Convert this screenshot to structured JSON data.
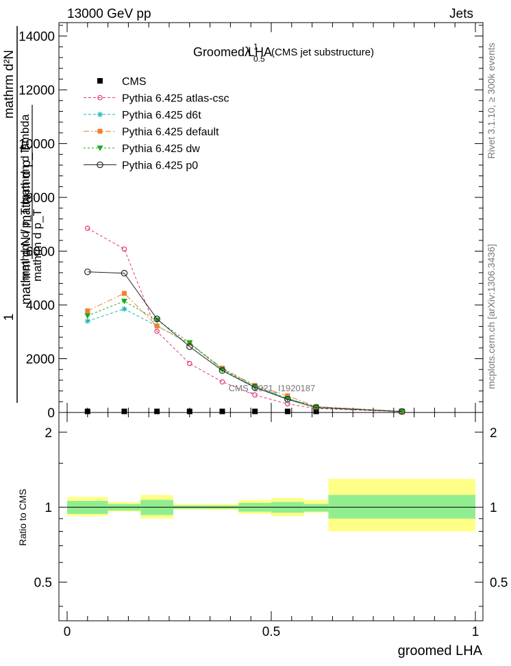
{
  "header": {
    "left": "13000 GeV pp",
    "right": "Jets"
  },
  "side_labels": {
    "rivet": "Rivet 3.1.10, ≥ 300k events",
    "mcplots": "mcplots.cern.ch [arXiv:1306.3436]"
  },
  "watermark": "CMS_2021_I1920187",
  "chart_data": [
    {
      "type": "line",
      "title_main": "Groomed LHA",
      "title_lambda": "λ",
      "title_sup": "1",
      "title_sub": "0.5",
      "title_suffix": "(CMS jet substructure)",
      "ylabel_top": "1",
      "ylabel_num1": "mathrm d²N",
      "ylabel_num2": "mathrm d p_T mathrm d lambda",
      "ylabel_den1": "mathrm d N / mathrm d p_T",
      "ylabel_den2": "mathrm d p_T",
      "xlim": [
        0,
        1
      ],
      "ylim": [
        0,
        14500
      ],
      "y_ticks": [
        0,
        2000,
        4000,
        6000,
        8000,
        10000,
        12000,
        14000
      ],
      "y_tick_labels": [
        "0",
        "2000",
        "4000",
        "6000",
        "8000",
        "10000",
        "12000",
        "14000"
      ],
      "grid": false,
      "legend_position": "top-left",
      "bins": [
        [
          0,
          0.1
        ],
        [
          0.1,
          0.18
        ],
        [
          0.18,
          0.26
        ],
        [
          0.26,
          0.34
        ],
        [
          0.34,
          0.42
        ],
        [
          0.42,
          0.5
        ],
        [
          0.5,
          0.58
        ],
        [
          0.58,
          0.64
        ],
        [
          0.64,
          1.0
        ]
      ],
      "x": [
        0.05,
        0.14,
        0.22,
        0.3,
        0.38,
        0.46,
        0.54,
        0.61,
        0.82
      ],
      "series": [
        {
          "name": "CMS",
          "style": "data",
          "color": "#000000",
          "values": [
            40,
            40,
            40,
            40,
            40,
            40,
            40,
            40,
            40
          ]
        },
        {
          "name": "Pythia 6.425 atlas-csc",
          "style": "open-circle",
          "dash": "4,3",
          "color": "#e8336f",
          "values": [
            6850,
            6080,
            3020,
            1820,
            1140,
            650,
            320,
            150,
            30
          ]
        },
        {
          "name": "Pythia 6.425 d6t",
          "style": "star",
          "dash": "4,3",
          "color": "#1fb3b3",
          "values": [
            3400,
            3850,
            3220,
            2550,
            1620,
            980,
            520,
            220,
            40
          ]
        },
        {
          "name": "Pythia 6.425 default",
          "style": "square",
          "dash": "8,3,2,3",
          "color": "#f08030",
          "values": [
            3780,
            4430,
            3220,
            2580,
            1650,
            1010,
            620,
            220,
            40
          ]
        },
        {
          "name": "Pythia 6.425 dw",
          "style": "triangle-down",
          "dash": "3,3",
          "color": "#1aaa1a",
          "values": [
            3600,
            4140,
            3440,
            2600,
            1600,
            960,
            520,
            200,
            40
          ]
        },
        {
          "name": "Pythia 6.425 p0",
          "style": "open-circle-big",
          "dash": "",
          "color": "#222222",
          "values": [
            5230,
            5180,
            3480,
            2450,
            1560,
            930,
            490,
            180,
            35
          ]
        }
      ]
    },
    {
      "type": "area",
      "ylabel": "Ratio to CMS",
      "xlabel": "groomed LHA",
      "xlim": [
        0,
        1
      ],
      "ylim": [
        0.35,
        2.4
      ],
      "x_ticks": [
        0,
        0.5,
        1
      ],
      "x_tick_labels": [
        "0",
        "0.5",
        "1"
      ],
      "y_ticks": [
        0.5,
        1,
        2
      ],
      "y_tick_labels": [
        "0.5",
        "1",
        "2"
      ],
      "log_scale": true,
      "stat_band": [
        [
          0.94,
          1.06
        ],
        [
          0.97,
          1.03
        ],
        [
          0.93,
          1.07
        ],
        [
          0.985,
          1.015
        ],
        [
          0.985,
          1.015
        ],
        [
          0.96,
          1.04
        ],
        [
          0.95,
          1.05
        ],
        [
          0.96,
          1.03
        ],
        [
          0.9,
          1.12
        ]
      ],
      "total_band": [
        [
          0.92,
          1.1
        ],
        [
          0.96,
          1.05
        ],
        [
          0.9,
          1.12
        ],
        [
          0.98,
          1.03
        ],
        [
          0.975,
          1.03
        ],
        [
          0.94,
          1.07
        ],
        [
          0.92,
          1.09
        ],
        [
          0.95,
          1.07
        ],
        [
          0.8,
          1.3
        ]
      ],
      "band_colors": {
        "stat": "#90ee90",
        "total": "#ffff88"
      }
    }
  ]
}
